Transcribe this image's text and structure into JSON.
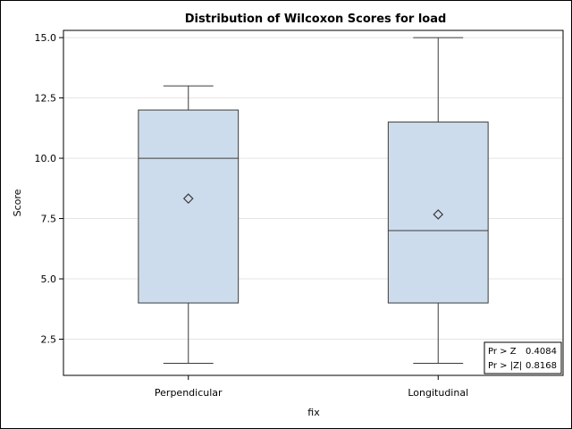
{
  "chart_data": {
    "type": "boxplot",
    "title": "Distribution of Wilcoxon Scores for load",
    "xlabel": "fix",
    "ylabel": "Score",
    "categories": [
      "Perpendicular",
      "Longitudinal"
    ],
    "ylim": [
      1.0,
      15.3
    ],
    "yticks": [
      "2.5",
      "5.0",
      "7.5",
      "10.0",
      "12.5",
      "15.0"
    ],
    "grid": "horizontal",
    "box_color": "#cddcec",
    "line_color": "#3c3c3c",
    "boxes": [
      {
        "category": "Perpendicular",
        "whisker_low": 1.5,
        "q1": 4.0,
        "median": 10.0,
        "q3": 12.0,
        "whisker_high": 13.0,
        "mean": 8.33
      },
      {
        "category": "Longitudinal",
        "whisker_low": 1.5,
        "q1": 4.0,
        "median": 7.0,
        "q3": 11.5,
        "whisker_high": 15.0,
        "mean": 7.67
      }
    ],
    "stats": [
      {
        "label": "Pr > Z",
        "value": "0.4084"
      },
      {
        "label": "Pr > |Z|",
        "value": "0.8168"
      }
    ],
    "stats_placement": "bottom-right"
  }
}
